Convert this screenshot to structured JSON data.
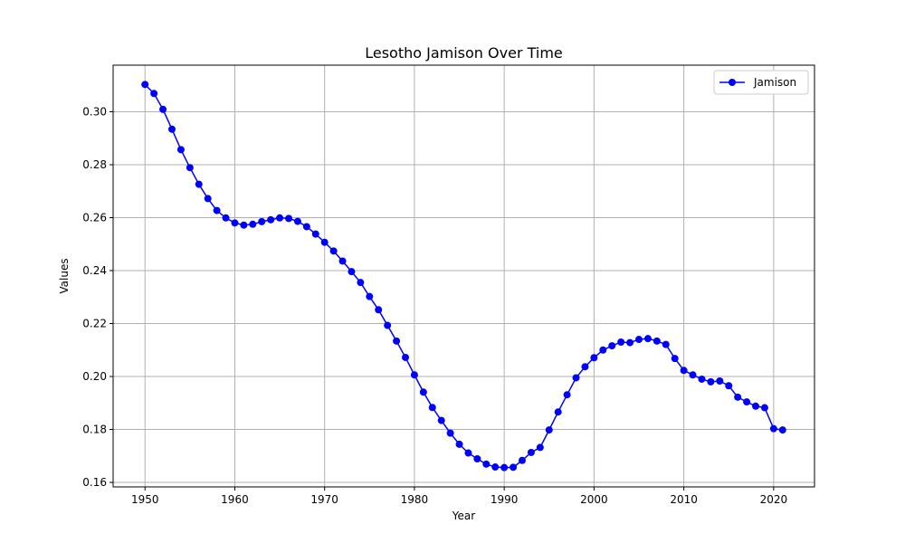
{
  "chart_data": {
    "type": "line",
    "title": "Lesotho Jamison Over Time",
    "xlabel": "Year",
    "ylabel": "Values",
    "xlim": [
      1946.45,
      2024.55
    ],
    "ylim": [
      0.1583,
      0.3176
    ],
    "xticks": [
      1950,
      1960,
      1970,
      1980,
      1990,
      2000,
      2010,
      2020
    ],
    "xtick_labels": [
      "1950",
      "1960",
      "1970",
      "1980",
      "1990",
      "2000",
      "2010",
      "2020"
    ],
    "yticks": [
      0.16,
      0.18,
      0.2,
      0.22,
      0.24,
      0.26,
      0.28,
      0.3
    ],
    "ytick_labels": [
      "0.16",
      "0.18",
      "0.20",
      "0.22",
      "0.24",
      "0.26",
      "0.28",
      "0.30"
    ],
    "grid": true,
    "legend_position": "top-right",
    "series": [
      {
        "name": "Jamison",
        "color": "#0000ff",
        "marker": "circle",
        "x": [
          1950,
          1951,
          1952,
          1953,
          1954,
          1955,
          1956,
          1957,
          1958,
          1959,
          1960,
          1961,
          1962,
          1963,
          1964,
          1965,
          1966,
          1967,
          1968,
          1969,
          1970,
          1971,
          1972,
          1973,
          1974,
          1975,
          1976,
          1977,
          1978,
          1979,
          1980,
          1981,
          1982,
          1983,
          1984,
          1985,
          1986,
          1987,
          1988,
          1989,
          1990,
          1991,
          1992,
          1993,
          1994,
          1995,
          1996,
          1997,
          1998,
          1999,
          2000,
          2001,
          2002,
          2003,
          2004,
          2005,
          2006,
          2007,
          2008,
          2009,
          2010,
          2011,
          2012,
          2013,
          2014,
          2015,
          2016,
          2017,
          2018,
          2019,
          2020,
          2021
        ],
        "y": [
          0.3103,
          0.3069,
          0.3009,
          0.2934,
          0.2857,
          0.2789,
          0.2726,
          0.2672,
          0.2627,
          0.2599,
          0.258,
          0.2572,
          0.2575,
          0.2585,
          0.2592,
          0.2599,
          0.2597,
          0.2586,
          0.2566,
          0.2538,
          0.2507,
          0.2474,
          0.2436,
          0.2396,
          0.2355,
          0.2302,
          0.2252,
          0.2193,
          0.2134,
          0.2072,
          0.2006,
          0.1941,
          0.1883,
          0.1834,
          0.1786,
          0.1744,
          0.1711,
          0.1689,
          0.1669,
          0.1658,
          0.1656,
          0.1657,
          0.1683,
          0.1713,
          0.1732,
          0.1798,
          0.1866,
          0.1931,
          0.1995,
          0.2037,
          0.2071,
          0.21,
          0.2116,
          0.213,
          0.2128,
          0.214,
          0.2143,
          0.2134,
          0.2121,
          0.2068,
          0.2023,
          0.2006,
          0.199,
          0.198,
          0.1983,
          0.1965,
          0.1922,
          0.1904,
          0.1888,
          0.1882,
          0.1803,
          0.1798
        ]
      }
    ]
  }
}
